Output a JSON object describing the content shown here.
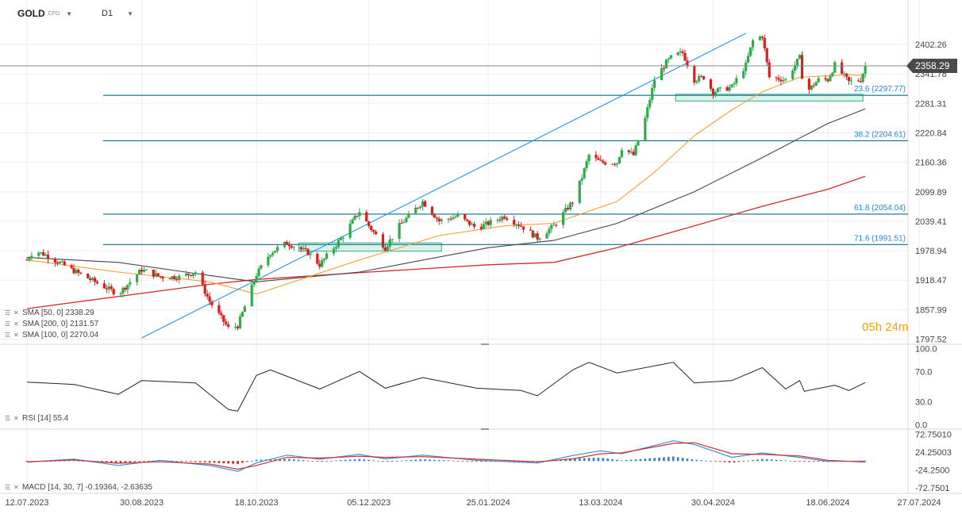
{
  "header": {
    "symbol": "GOLD",
    "instrument_type": "CFD",
    "timeframe": "D1"
  },
  "countdown": {
    "hours": "05",
    "h_unit": "h",
    "minutes": "24",
    "m_unit": "m"
  },
  "price_axis": [
    "2402.26",
    "2341.78",
    "2281.31",
    "2220.84",
    "2160.36",
    "2099.89",
    "2039.41",
    "1978.94",
    "1918.47",
    "1857.99",
    "1797.52"
  ],
  "current_price": "2358.29",
  "rsi_axis": [
    "100.0",
    "70.0",
    "30.0",
    "0.0"
  ],
  "macd_axis": [
    "72.75010",
    "24.25003",
    "-24.2500",
    "-72.7501"
  ],
  "time_axis": [
    "12.07.2023",
    "30.08.2023",
    "18.10.2023",
    "05.12.2023",
    "25.01.2024",
    "13.03.2024",
    "30.04.2024",
    "18.06.2024",
    "27.07.2024"
  ],
  "fib_levels": [
    {
      "label": "23.6 (2297.77)",
      "price": 2297.77
    },
    {
      "label": "38.2 (2204.61)",
      "price": 2204.61
    },
    {
      "label": "61.8 (2054.04)",
      "price": 2054.04
    },
    {
      "label": "71.6 (1991.51)",
      "price": 1991.51
    }
  ],
  "indicators": {
    "sma50": "SMA [50, 0]  2338.29",
    "sma200": "SMA [200, 0]  2131.57",
    "sma100": "SMA [100, 0]  2270.04",
    "rsi": "RSI [14]  55.4",
    "macd": "MACD [14, 30, 7]  -0.19364,  -2.63635"
  },
  "colors": {
    "bull": "#2eaa4a",
    "bear": "#d42020",
    "sma50": "#f5a030",
    "sma200": "#d42a2a",
    "sma100": "#444444",
    "fib": "#0a6f8a",
    "trend": "#2196f3",
    "zone": "#d8f3ea",
    "zone_border": "#3aa88a",
    "macd_line": "#3a8fd8",
    "signal_line": "#d03030"
  },
  "chart_data": {
    "type": "candlestick",
    "instrument": "GOLD",
    "timeframe": "D1",
    "x_range": [
      "12.07.2023",
      "18.06.2024"
    ],
    "ylim": [
      1797.52,
      2402.26
    ],
    "current_price": 2358.29,
    "anchors": [
      {
        "x": "12.07.2023",
        "price": 1960
      },
      {
        "x": "15.07.2023",
        "price": 1980
      },
      {
        "x": "20.07.2023",
        "price": 1970
      },
      {
        "x": "02.08.2023",
        "price": 1935
      },
      {
        "x": "10.08.2023",
        "price": 1915
      },
      {
        "x": "20.08.2023",
        "price": 1890
      },
      {
        "x": "30.08.2023",
        "price": 1940
      },
      {
        "x": "07.09.2023",
        "price": 1925
      },
      {
        "x": "15.09.2023",
        "price": 1925
      },
      {
        "x": "22.09.2023",
        "price": 1935
      },
      {
        "x": "28.09.2023",
        "price": 1875
      },
      {
        "x": "06.10.2023",
        "price": 1820
      },
      {
        "x": "10.10.2023",
        "price": 1825
      },
      {
        "x": "18.10.2023",
        "price": 1930
      },
      {
        "x": "24.10.2023",
        "price": 1975
      },
      {
        "x": "31.10.2023",
        "price": 1995
      },
      {
        "x": "09.11.2023",
        "price": 1975
      },
      {
        "x": "14.11.2023",
        "price": 1950
      },
      {
        "x": "20.11.2023",
        "price": 1985
      },
      {
        "x": "24.11.2023",
        "price": 2010
      },
      {
        "x": "01.12.2023",
        "price": 2060
      },
      {
        "x": "05.12.2023",
        "price": 2030
      },
      {
        "x": "12.12.2023",
        "price": 1985
      },
      {
        "x": "18.12.2023",
        "price": 2030
      },
      {
        "x": "28.12.2023",
        "price": 2080
      },
      {
        "x": "04.01.2024",
        "price": 2040
      },
      {
        "x": "12.01.2024",
        "price": 2050
      },
      {
        "x": "20.01.2024",
        "price": 2025
      },
      {
        "x": "25.01.2024",
        "price": 2035
      },
      {
        "x": "01.02.2024",
        "price": 2050
      },
      {
        "x": "08.02.2024",
        "price": 2030
      },
      {
        "x": "15.02.2024",
        "price": 2005
      },
      {
        "x": "22.02.2024",
        "price": 2030
      },
      {
        "x": "01.03.2024",
        "price": 2080
      },
      {
        "x": "05.03.2024",
        "price": 2130
      },
      {
        "x": "08.03.2024",
        "price": 2175
      },
      {
        "x": "13.03.2024",
        "price": 2160
      },
      {
        "x": "20.03.2024",
        "price": 2160
      },
      {
        "x": "22.03.2024",
        "price": 2190
      },
      {
        "x": "27.03.2024",
        "price": 2175
      },
      {
        "x": "01.04.2024",
        "price": 2250
      },
      {
        "x": "05.04.2024",
        "price": 2330
      },
      {
        "x": "10.04.2024",
        "price": 2365
      },
      {
        "x": "13.04.2024",
        "price": 2380
      },
      {
        "x": "17.04.2024",
        "price": 2385
      },
      {
        "x": "22.04.2024",
        "price": 2330
      },
      {
        "x": "26.04.2024",
        "price": 2335
      },
      {
        "x": "30.04.2024",
        "price": 2305
      },
      {
        "x": "08.05.2024",
        "price": 2315
      },
      {
        "x": "14.05.2024",
        "price": 2360
      },
      {
        "x": "17.05.2024",
        "price": 2410
      },
      {
        "x": "21.05.2024",
        "price": 2420
      },
      {
        "x": "24.05.2024",
        "price": 2335
      },
      {
        "x": "31.05.2024",
        "price": 2330
      },
      {
        "x": "06.06.2024",
        "price": 2375
      },
      {
        "x": "08.06.2024",
        "price": 2300
      },
      {
        "x": "14.06.2024",
        "price": 2330
      },
      {
        "x": "18.06.2024",
        "price": 2330
      },
      {
        "x": "21.06.2024",
        "price": 2360
      },
      {
        "x": "27.06.2024",
        "price": 2325
      },
      {
        "x": "02.07.2024",
        "price": 2330
      },
      {
        "x": "04.07.2024",
        "price": 2358
      }
    ],
    "sma50": [
      {
        "x": "12.07.2023",
        "price": 1960
      },
      {
        "x": "20.08.2023",
        "price": 1935
      },
      {
        "x": "28.09.2023",
        "price": 1915
      },
      {
        "x": "18.10.2023",
        "price": 1890
      },
      {
        "x": "09.11.2023",
        "price": 1925
      },
      {
        "x": "01.12.2023",
        "price": 1960
      },
      {
        "x": "04.01.2024",
        "price": 2010
      },
      {
        "x": "01.02.2024",
        "price": 2030
      },
      {
        "x": "22.02.2024",
        "price": 2035
      },
      {
        "x": "20.03.2024",
        "price": 2080
      },
      {
        "x": "05.04.2024",
        "price": 2140
      },
      {
        "x": "22.04.2024",
        "price": 2215
      },
      {
        "x": "08.05.2024",
        "price": 2268
      },
      {
        "x": "21.05.2024",
        "price": 2305
      },
      {
        "x": "06.06.2024",
        "price": 2335
      },
      {
        "x": "27.06.2024",
        "price": 2340
      },
      {
        "x": "04.07.2024",
        "price": 2338.29
      }
    ],
    "sma100": [
      {
        "x": "12.07.2023",
        "price": 1965
      },
      {
        "x": "20.08.2023",
        "price": 1955
      },
      {
        "x": "28.09.2023",
        "price": 1928
      },
      {
        "x": "18.10.2023",
        "price": 1915
      },
      {
        "x": "01.12.2023",
        "price": 1935
      },
      {
        "x": "25.01.2024",
        "price": 1985
      },
      {
        "x": "22.02.2024",
        "price": 2000
      },
      {
        "x": "20.03.2024",
        "price": 2035
      },
      {
        "x": "22.04.2024",
        "price": 2100
      },
      {
        "x": "21.05.2024",
        "price": 2170
      },
      {
        "x": "18.06.2024",
        "price": 2240
      },
      {
        "x": "04.07.2024",
        "price": 2270.04
      }
    ],
    "sma200": [
      {
        "x": "12.07.2023",
        "price": 1860
      },
      {
        "x": "28.09.2023",
        "price": 1910
      },
      {
        "x": "18.10.2023",
        "price": 1920
      },
      {
        "x": "05.12.2023",
        "price": 1935
      },
      {
        "x": "25.01.2024",
        "price": 1950
      },
      {
        "x": "22.02.2024",
        "price": 1955
      },
      {
        "x": "20.03.2024",
        "price": 1985
      },
      {
        "x": "22.04.2024",
        "price": 2030
      },
      {
        "x": "21.05.2024",
        "price": 2070
      },
      {
        "x": "18.06.2024",
        "price": 2105
      },
      {
        "x": "04.07.2024",
        "price": 2131.57
      }
    ],
    "trendline": [
      {
        "x": "30.08.2023",
        "price": 1800
      },
      {
        "x": "14.05.2024",
        "price": 2425
      }
    ],
    "zones": [
      {
        "x0": "05.11.2023",
        "x1": "05.01.2024",
        "top": 1995,
        "bottom": 1978
      },
      {
        "x0": "14.04.2024",
        "x1": "03.07.2024",
        "top": 2300,
        "bottom": 2286
      }
    ],
    "rsi": {
      "ylim": [
        0,
        100
      ],
      "current": 55.4,
      "points": [
        {
          "x": "12.07.2023",
          "v": 56
        },
        {
          "x": "01.08.2023",
          "v": 53
        },
        {
          "x": "20.08.2023",
          "v": 40
        },
        {
          "x": "30.08.2023",
          "v": 58
        },
        {
          "x": "22.09.2023",
          "v": 55
        },
        {
          "x": "06.10.2023",
          "v": 20
        },
        {
          "x": "10.10.2023",
          "v": 18
        },
        {
          "x": "18.10.2023",
          "v": 65
        },
        {
          "x": "24.10.2023",
          "v": 72
        },
        {
          "x": "14.11.2023",
          "v": 47
        },
        {
          "x": "01.12.2023",
          "v": 70
        },
        {
          "x": "12.12.2023",
          "v": 48
        },
        {
          "x": "28.12.2023",
          "v": 62
        },
        {
          "x": "20.01.2024",
          "v": 48
        },
        {
          "x": "08.02.2024",
          "v": 45
        },
        {
          "x": "15.02.2024",
          "v": 38
        },
        {
          "x": "01.03.2024",
          "v": 72
        },
        {
          "x": "08.03.2024",
          "v": 82
        },
        {
          "x": "20.03.2024",
          "v": 68
        },
        {
          "x": "13.04.2024",
          "v": 82
        },
        {
          "x": "22.04.2024",
          "v": 55
        },
        {
          "x": "08.05.2024",
          "v": 58
        },
        {
          "x": "21.05.2024",
          "v": 75
        },
        {
          "x": "31.05.2024",
          "v": 47
        },
        {
          "x": "06.06.2024",
          "v": 58
        },
        {
          "x": "08.06.2024",
          "v": 44
        },
        {
          "x": "21.06.2024",
          "v": 52
        },
        {
          "x": "27.06.2024",
          "v": 45
        },
        {
          "x": "04.07.2024",
          "v": 55.4
        }
      ]
    },
    "macd": {
      "ylim": [
        -72.7501,
        72.7501
      ],
      "current_macd": -0.19364,
      "current_signal": -2.63635,
      "macd_line": [
        {
          "x": "12.07.2023",
          "v": -3
        },
        {
          "x": "01.08.2023",
          "v": 5
        },
        {
          "x": "20.08.2023",
          "v": -12
        },
        {
          "x": "07.09.2023",
          "v": 2
        },
        {
          "x": "28.09.2023",
          "v": -12
        },
        {
          "x": "10.10.2023",
          "v": -28
        },
        {
          "x": "18.10.2023",
          "v": -5
        },
        {
          "x": "31.10.2023",
          "v": 16
        },
        {
          "x": "14.11.2023",
          "v": 5
        },
        {
          "x": "01.12.2023",
          "v": 18
        },
        {
          "x": "12.12.2023",
          "v": 6
        },
        {
          "x": "28.12.2023",
          "v": 16
        },
        {
          "x": "20.01.2024",
          "v": 2
        },
        {
          "x": "15.02.2024",
          "v": -5
        },
        {
          "x": "01.03.2024",
          "v": 15
        },
        {
          "x": "13.03.2024",
          "v": 28
        },
        {
          "x": "22.03.2024",
          "v": 20
        },
        {
          "x": "13.04.2024",
          "v": 55
        },
        {
          "x": "22.04.2024",
          "v": 45
        },
        {
          "x": "08.05.2024",
          "v": 10
        },
        {
          "x": "21.05.2024",
          "v": 22
        },
        {
          "x": "06.06.2024",
          "v": 10
        },
        {
          "x": "18.06.2024",
          "v": -1
        },
        {
          "x": "04.07.2024",
          "v": -0.19
        }
      ],
      "signal_line": [
        {
          "x": "12.07.2023",
          "v": -2
        },
        {
          "x": "01.08.2023",
          "v": 3
        },
        {
          "x": "20.08.2023",
          "v": -6
        },
        {
          "x": "07.09.2023",
          "v": -2
        },
        {
          "x": "28.09.2023",
          "v": -8
        },
        {
          "x": "10.10.2023",
          "v": -22
        },
        {
          "x": "18.10.2023",
          "v": -12
        },
        {
          "x": "31.10.2023",
          "v": 10
        },
        {
          "x": "14.11.2023",
          "v": 8
        },
        {
          "x": "01.12.2023",
          "v": 13
        },
        {
          "x": "12.12.2023",
          "v": 10
        },
        {
          "x": "28.12.2023",
          "v": 12
        },
        {
          "x": "20.01.2024",
          "v": 5
        },
        {
          "x": "15.02.2024",
          "v": -2
        },
        {
          "x": "01.03.2024",
          "v": 6
        },
        {
          "x": "13.03.2024",
          "v": 20
        },
        {
          "x": "22.03.2024",
          "v": 22
        },
        {
          "x": "13.04.2024",
          "v": 48
        },
        {
          "x": "22.04.2024",
          "v": 50
        },
        {
          "x": "08.05.2024",
          "v": 20
        },
        {
          "x": "21.05.2024",
          "v": 18
        },
        {
          "x": "06.06.2024",
          "v": 14
        },
        {
          "x": "18.06.2024",
          "v": 2
        },
        {
          "x": "04.07.2024",
          "v": -2.64
        }
      ]
    }
  }
}
